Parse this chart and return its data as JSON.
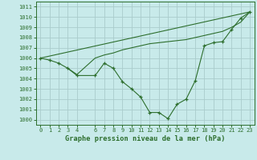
{
  "title": "Graphe pression niveau de la mer (hPa)",
  "bg_color": "#c8eaea",
  "grid_color": "#aacccc",
  "line_color": "#2d6e2d",
  "xlim": [
    -0.5,
    23.5
  ],
  "ylim": [
    999.5,
    1011.5
  ],
  "yticks": [
    1000,
    1001,
    1002,
    1003,
    1004,
    1005,
    1006,
    1007,
    1008,
    1009,
    1010,
    1011
  ],
  "xticks": [
    0,
    1,
    2,
    3,
    4,
    6,
    7,
    8,
    9,
    10,
    11,
    12,
    13,
    14,
    15,
    16,
    17,
    18,
    19,
    20,
    21,
    22,
    23
  ],
  "series_main": {
    "x": [
      0,
      1,
      2,
      3,
      4,
      6,
      7,
      8,
      9,
      10,
      11,
      12,
      13,
      14,
      15,
      16,
      17,
      18,
      19,
      20,
      21,
      22,
      23
    ],
    "y": [
      1006.0,
      1005.8,
      1005.5,
      1005.0,
      1004.3,
      1004.3,
      1005.5,
      1005.0,
      1003.7,
      1003.0,
      1002.2,
      1000.7,
      1000.7,
      1000.1,
      1001.5,
      1002.0,
      1003.8,
      1007.2,
      1007.5,
      1007.6,
      1008.8,
      1009.9,
      1010.5
    ]
  },
  "series_line2": {
    "x": [
      3,
      4,
      6,
      7,
      8,
      9,
      10,
      11,
      12,
      13,
      14,
      15,
      16,
      17,
      18,
      19,
      20,
      21,
      22,
      23
    ],
    "y": [
      1005.0,
      1004.4,
      1006.0,
      1006.3,
      1006.5,
      1006.8,
      1007.0,
      1007.2,
      1007.4,
      1007.5,
      1007.6,
      1007.7,
      1007.8,
      1008.0,
      1008.2,
      1008.4,
      1008.6,
      1009.0,
      1009.5,
      1010.5
    ]
  },
  "series_line3": {
    "x": [
      0,
      23
    ],
    "y": [
      1006.0,
      1010.5
    ]
  }
}
